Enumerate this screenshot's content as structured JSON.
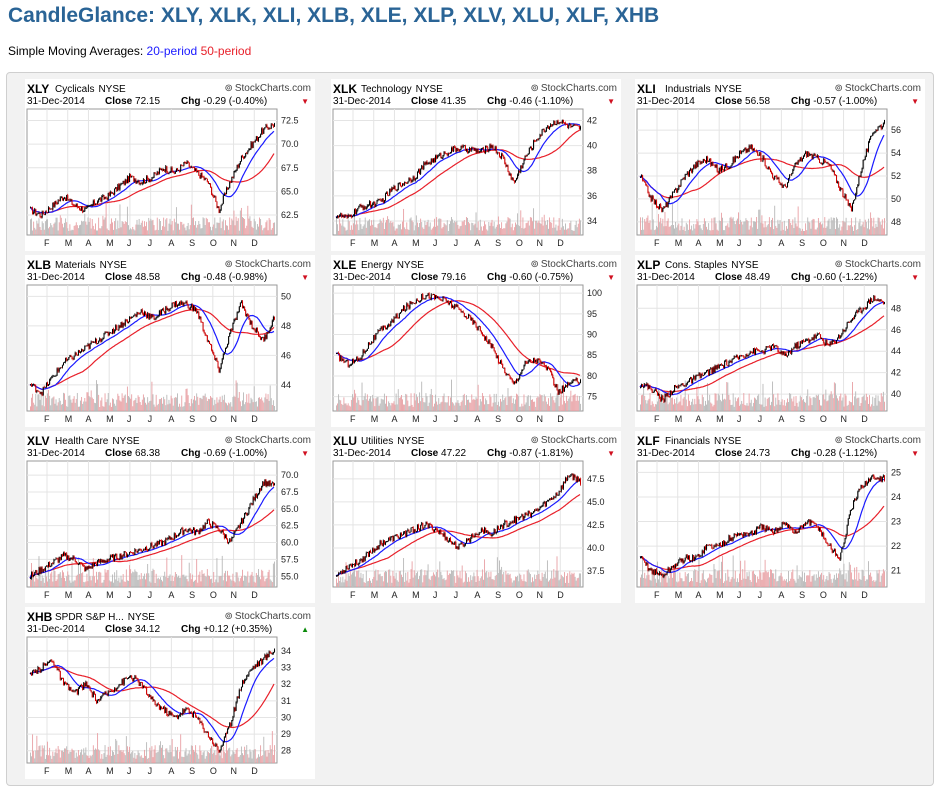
{
  "page_title": "CandleGlance: XLY, XLK, XLI, XLB, XLE, XLP, XLV, XLU, XLF, XHB",
  "sma": {
    "label": "Simple Moving Averages:",
    "p20": "20-period",
    "p50": "50-period"
  },
  "colors": {
    "title": "#2a6496",
    "sma20": "#1a1aff",
    "sma50": "#e8202a",
    "down": "#d01020",
    "up": "#0a8a0a"
  },
  "months": [
    "F",
    "M",
    "A",
    "M",
    "J",
    "J",
    "A",
    "S",
    "O",
    "N",
    "D"
  ],
  "panels": [
    {
      "ticker": "XLY",
      "name": "Cyclicals",
      "exchange": "NYSE",
      "brand": "StockCharts.com",
      "date": "31-Dec-2014",
      "close_label": "Close",
      "close": "72.15",
      "chg_label": "Chg",
      "chg": "-0.29 (-0.40%)",
      "dir": "down",
      "ticks": [
        "72.5",
        "70.0",
        "67.5",
        "65.0",
        "62.5"
      ],
      "ymin": 60.8,
      "ymax": 73.3,
      "path": [
        63,
        62.5,
        63.5,
        64.5,
        63.5,
        63,
        64,
        64.5,
        65.5,
        66.5,
        66,
        66.5,
        67.5,
        67,
        68,
        67,
        66,
        63,
        66,
        68.5,
        70,
        71.5,
        72.15
      ]
    },
    {
      "ticker": "XLK",
      "name": "Technology",
      "exchange": "NYSE",
      "brand": "StockCharts.com",
      "date": "31-Dec-2014",
      "close_label": "Close",
      "close": "41.35",
      "chg_label": "Chg",
      "chg": "-0.46 (-1.10%)",
      "dir": "down",
      "ticks": [
        "42",
        "40",
        "38",
        "36",
        "34"
      ],
      "ymin": 33.2,
      "ymax": 42.6,
      "path": [
        34.5,
        34.2,
        35,
        35.3,
        35.5,
        36.5,
        37,
        37.5,
        38.5,
        39,
        39.5,
        39.8,
        39.7,
        39.5,
        40,
        39,
        37,
        39,
        40.5,
        41.5,
        42,
        41.5,
        41.35
      ]
    },
    {
      "ticker": "XLI",
      "name": "Industrials",
      "exchange": "NYSE",
      "brand": "StockCharts.com",
      "date": "31-Dec-2014",
      "close_label": "Close",
      "close": "56.58",
      "chg_label": "Chg",
      "chg": "-0.57 (-1.00%)",
      "dir": "down",
      "ticks": [
        "56",
        "54",
        "52",
        "50",
        "48"
      ],
      "ymin": 47.2,
      "ymax": 57.5,
      "path": [
        52,
        50,
        49,
        50.5,
        52,
        53,
        53.5,
        52.5,
        53,
        54,
        54.5,
        53.5,
        52,
        51,
        53,
        54,
        53.5,
        53,
        51,
        49,
        53,
        56,
        56.58
      ]
    },
    {
      "ticker": "XLB",
      "name": "Materials",
      "exchange": "NYSE",
      "brand": "StockCharts.com",
      "date": "31-Dec-2014",
      "close_label": "Close",
      "close": "48.58",
      "chg_label": "Chg",
      "chg": "-0.48 (-0.98%)",
      "dir": "down",
      "ticks": [
        "50",
        "48",
        "46",
        "44"
      ],
      "ymin": 42.5,
      "ymax": 50.5,
      "path": [
        44,
        43.5,
        44.5,
        45.5,
        46,
        46.5,
        47,
        47.5,
        48,
        48.5,
        49,
        48.5,
        49,
        49.5,
        49.5,
        49,
        47,
        45,
        47.5,
        49.5,
        48,
        47,
        48.58
      ]
    },
    {
      "ticker": "XLE",
      "name": "Energy",
      "exchange": "NYSE",
      "brand": "StockCharts.com",
      "date": "31-Dec-2014",
      "close_label": "Close",
      "close": "79.16",
      "chg_label": "Chg",
      "chg": "-0.60 (-0.75%)",
      "dir": "down",
      "ticks": [
        "100",
        "95",
        "90",
        "85",
        "80",
        "75"
      ],
      "ymin": 72.5,
      "ymax": 101,
      "path": [
        85,
        83,
        84,
        88,
        91,
        93,
        96,
        98,
        99.5,
        99,
        98,
        96,
        94,
        91,
        87,
        82,
        78,
        83,
        84,
        82,
        76,
        78,
        79.16
      ]
    },
    {
      "ticker": "XLP",
      "name": "Cons. Staples",
      "exchange": "NYSE",
      "brand": "StockCharts.com",
      "date": "31-Dec-2014",
      "close_label": "Close",
      "close": "48.49",
      "chg_label": "Chg",
      "chg": "-0.60 (-1.22%)",
      "dir": "down",
      "ticks": [
        "48",
        "46",
        "44",
        "42",
        "40"
      ],
      "ymin": 38.8,
      "ymax": 49.8,
      "path": [
        41,
        40.5,
        39.5,
        40.5,
        41,
        41.5,
        42,
        42.5,
        43,
        43.5,
        44,
        44,
        44.5,
        43.5,
        44.5,
        45,
        45.5,
        44.5,
        45.5,
        47,
        48,
        49,
        48.49
      ]
    },
    {
      "ticker": "XLV",
      "name": "Health Care",
      "exchange": "NYSE",
      "brand": "StockCharts.com",
      "date": "31-Dec-2014",
      "close_label": "Close",
      "close": "68.38",
      "chg_label": "Chg",
      "chg": "-0.69 (-1.00%)",
      "dir": "down",
      "ticks": [
        "70.0",
        "67.5",
        "65.0",
        "62.5",
        "60.0",
        "57.5",
        "55.0"
      ],
      "ymin": 54,
      "ymax": 71.5,
      "path": [
        55,
        56,
        57,
        58,
        57.5,
        56,
        57,
        57.5,
        58,
        58.5,
        59,
        59.5,
        60,
        61,
        62,
        61.5,
        63,
        62,
        60,
        63,
        66,
        69,
        68.38
      ]
    },
    {
      "ticker": "XLU",
      "name": "Utilities",
      "exchange": "NYSE",
      "brand": "StockCharts.com",
      "date": "31-Dec-2014",
      "close_label": "Close",
      "close": "47.22",
      "chg_label": "Chg",
      "chg": "-0.87 (-1.81%)",
      "dir": "down",
      "ticks": [
        "47.5",
        "45.0",
        "42.5",
        "40.0",
        "37.5"
      ],
      "ymin": 36.2,
      "ymax": 49,
      "path": [
        37,
        38,
        38.5,
        39.5,
        40.5,
        41,
        41.5,
        42,
        42.5,
        42,
        41,
        40,
        41,
        42,
        41.5,
        42.5,
        43,
        43.5,
        44,
        45,
        46,
        48,
        47.22
      ]
    },
    {
      "ticker": "XLF",
      "name": "Financials",
      "exchange": "NYSE",
      "brand": "StockCharts.com",
      "date": "31-Dec-2014",
      "close_label": "Close",
      "close": "24.73",
      "chg_label": "Chg",
      "chg": "-0.28 (-1.12%)",
      "dir": "down",
      "ticks": [
        "25",
        "24",
        "23",
        "22",
        "21"
      ],
      "ymin": 20.5,
      "ymax": 25.3,
      "path": [
        21.5,
        21,
        20.8,
        21.2,
        21.5,
        21.5,
        22,
        22,
        22.3,
        22.5,
        22.5,
        22.8,
        22.5,
        23,
        22.5,
        23,
        22.8,
        22,
        21.5,
        23.5,
        24.5,
        24.8,
        24.73
      ]
    },
    {
      "ticker": "XHB",
      "name": "SPDR S&P H...",
      "exchange": "NYSE",
      "brand": "StockCharts.com",
      "date": "31-Dec-2014",
      "close_label": "Close",
      "close": "34.12",
      "chg_label": "Chg",
      "chg": "+0.12 (+0.35%)",
      "dir": "up",
      "ticks": [
        "34",
        "33",
        "32",
        "31",
        "30",
        "29",
        "28"
      ],
      "ymin": 27.5,
      "ymax": 34.6,
      "path": [
        32.5,
        33,
        33.5,
        32,
        31.5,
        32,
        31,
        31.5,
        32,
        32.5,
        32,
        31,
        30.5,
        30,
        30.5,
        30,
        29,
        28,
        29.5,
        32,
        33,
        33.5,
        34.12
      ]
    }
  ]
}
